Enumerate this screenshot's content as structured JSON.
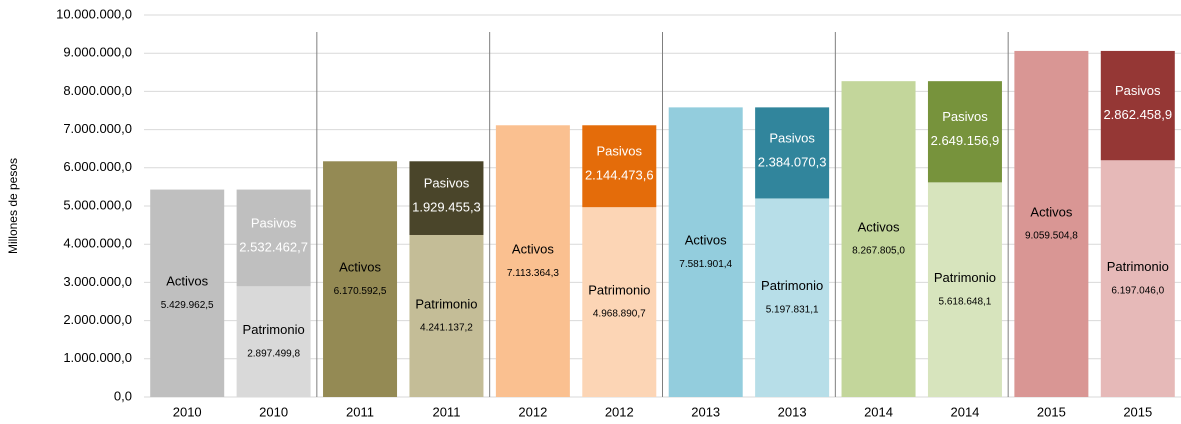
{
  "chart_data": {
    "type": "stacked-bar",
    "y_axis_label": "Millones de pesos",
    "categories": [
      "2010",
      "2010",
      "2011",
      "2011",
      "2012",
      "2012",
      "2013",
      "2013",
      "2014",
      "2014",
      "2015",
      "2015"
    ],
    "ylim": [
      0,
      10000000
    ],
    "yticks": [
      {
        "value": 0,
        "label": "0,0"
      },
      {
        "value": 1000000,
        "label": "1.000.000,0"
      },
      {
        "value": 2000000,
        "label": "2.000.000,0"
      },
      {
        "value": 3000000,
        "label": "3.000.000,0"
      },
      {
        "value": 4000000,
        "label": "4.000.000,0"
      },
      {
        "value": 5000000,
        "label": "5.000.000,0"
      },
      {
        "value": 6000000,
        "label": "6.000.000,0"
      },
      {
        "value": 7000000,
        "label": "7.000.000,0"
      },
      {
        "value": 8000000,
        "label": "8.000.000,0"
      },
      {
        "value": 9000000,
        "label": "9.000.000,0"
      },
      {
        "value": 10000000,
        "label": "10.000.000,0"
      }
    ],
    "grid": true,
    "series": [
      {
        "name": "Activos",
        "text_color": "#000000",
        "colors": [
          "#bfbfbf",
          null,
          "#948a54",
          null,
          "#fac090",
          null,
          "#93cddd",
          null,
          "#c3d69b",
          null,
          "#d99694",
          null
        ],
        "values": [
          5429962.5,
          null,
          6170592.5,
          null,
          7113364.3,
          null,
          7581901.4,
          null,
          8267805.0,
          null,
          9059504.8,
          null
        ],
        "value_labels": [
          "5.429.962,5",
          null,
          "6.170.592,5",
          null,
          "7.113.364,3",
          null,
          "7.581.901,4",
          null,
          "8.267.805,0",
          null,
          "9.059.504,8",
          null
        ]
      },
      {
        "name": "Patrimonio",
        "text_color": "#000000",
        "colors": [
          null,
          "#d9d9d9",
          null,
          "#c4bd97",
          null,
          "#fcd5b5",
          null,
          "#b7dee8",
          null,
          "#d7e4bd",
          null,
          "#e6b9b8"
        ],
        "values": [
          null,
          2897499.8,
          null,
          4241137.2,
          null,
          4968890.7,
          null,
          5197831.1,
          null,
          5618648.1,
          null,
          6197046.0
        ],
        "value_labels": [
          null,
          "2.897.499,8",
          null,
          "4.241.137,2",
          null,
          "4.968.890,7",
          null,
          "5.197.831,1",
          null,
          "5.618.648,1",
          null,
          "6.197.046,0"
        ]
      },
      {
        "name": "Pasivos",
        "text_color": "#ffffff",
        "colors": [
          null,
          "#bfbfbf",
          null,
          "#4a452a",
          null,
          "#e46c0a",
          null,
          "#31859c",
          null,
          "#77933c",
          null,
          "#953735"
        ],
        "values": [
          null,
          2532462.7,
          null,
          1929455.3,
          null,
          2144473.6,
          null,
          2384070.3,
          null,
          2649156.9,
          null,
          2862458.9
        ],
        "value_labels": [
          null,
          "2.532.462,7",
          null,
          "1.929.455,3",
          null,
          "2.144.473,6",
          null,
          "2.384.070,3",
          null,
          "2.649.156,9",
          null,
          "2.862.458,9"
        ]
      }
    ]
  }
}
